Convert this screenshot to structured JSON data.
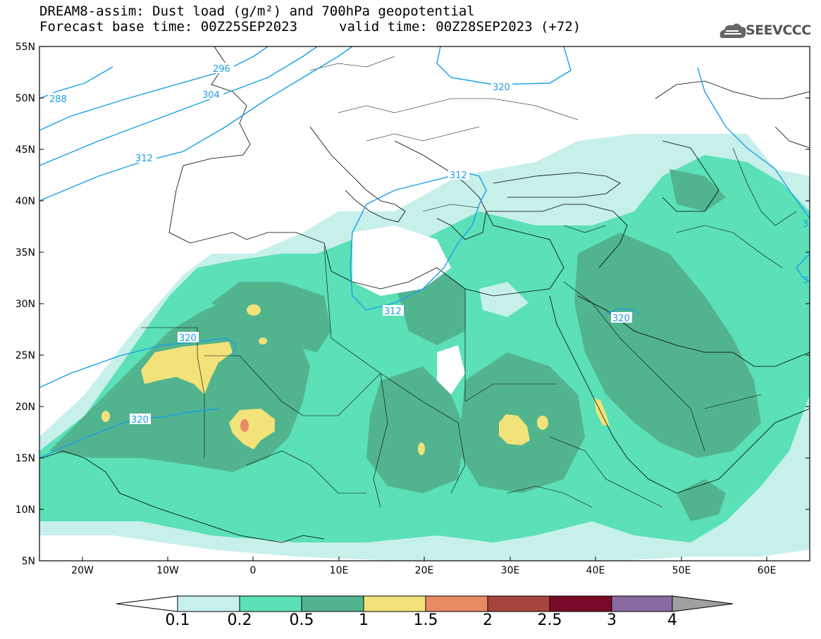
{
  "title": {
    "line1": "DREAM8-assim: Dust load (g/m²) and 700hPa geopotential",
    "line2_left": "Forecast base time: 00Z25SEP2023",
    "line2_right": "valid time: 00Z28SEP2023 (+72)"
  },
  "logo": {
    "text": "SEEVCCC",
    "icon": "cloud-logo-icon"
  },
  "map": {
    "lat_ticks": [
      "55N",
      "50N",
      "45N",
      "40N",
      "35N",
      "30N",
      "25N",
      "20N",
      "15N",
      "10N",
      "5N"
    ],
    "lon_ticks": [
      "20W",
      "10W",
      "0",
      "10E",
      "20E",
      "30E",
      "40E",
      "50E",
      "60E"
    ],
    "contour_labels": [
      "288",
      "296",
      "304",
      "312",
      "312",
      "320",
      "312",
      "320",
      "320",
      "320",
      "3",
      "3"
    ]
  },
  "legend": {
    "labels": [
      "0.1",
      "0.2",
      "0.5",
      "1",
      "1.5",
      "2",
      "2.5",
      "3",
      "4"
    ],
    "colors": {
      "c1": "#c7f0ea",
      "c2": "#5be0b8",
      "c3": "#52b48e",
      "c4": "#f2e27a",
      "c5": "#e88a64",
      "c6": "#a8443e",
      "c7": "#7a0a2a",
      "c8": "#8a6aa0",
      "over": "#a0a0a0"
    }
  }
}
